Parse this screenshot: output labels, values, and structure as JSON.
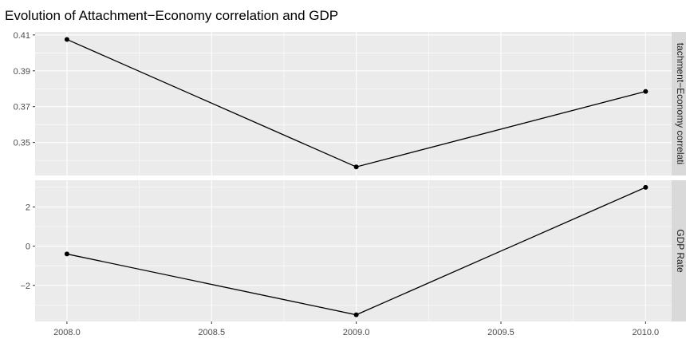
{
  "chart_data": {
    "type": "line",
    "title": "Evolution of Attachment−Economy correlation and GDP",
    "xlabel": "",
    "ylabel": "",
    "x": [
      2008,
      2009,
      2010
    ],
    "x_ticks": [
      "2008.0",
      "2008.5",
      "2009.0",
      "2009.5",
      "2010.0"
    ],
    "x_tick_values": [
      2008.0,
      2008.5,
      2009.0,
      2009.5,
      2010.0
    ],
    "xlim": [
      2007.89,
      2010.09
    ],
    "grid": true,
    "legend": "none",
    "panels": [
      {
        "strip_label": "tachment−Economy correlati",
        "ylim": [
          0.3316,
          0.4117
        ],
        "y_ticks": [
          "0.35",
          "0.37",
          "0.39",
          "0.41"
        ],
        "y_tick_values": [
          0.35,
          0.37,
          0.39,
          0.41
        ],
        "series": [
          {
            "values": [
              0.4075,
              0.3364,
              0.3785
            ]
          }
        ]
      },
      {
        "strip_label": "GDP Rate",
        "ylim": [
          -3.84,
          3.36
        ],
        "y_ticks": [
          "−2",
          "0",
          "2"
        ],
        "y_tick_values": [
          -2,
          0,
          2
        ],
        "series": [
          {
            "values": [
              -0.4,
              -3.5,
              3.0
            ]
          }
        ]
      }
    ],
    "colors": {
      "panel_bg": "#ebebeb",
      "grid": "#ffffff",
      "strip_bg": "#d9d9d9",
      "line": "#000000",
      "point": "#000000"
    }
  }
}
